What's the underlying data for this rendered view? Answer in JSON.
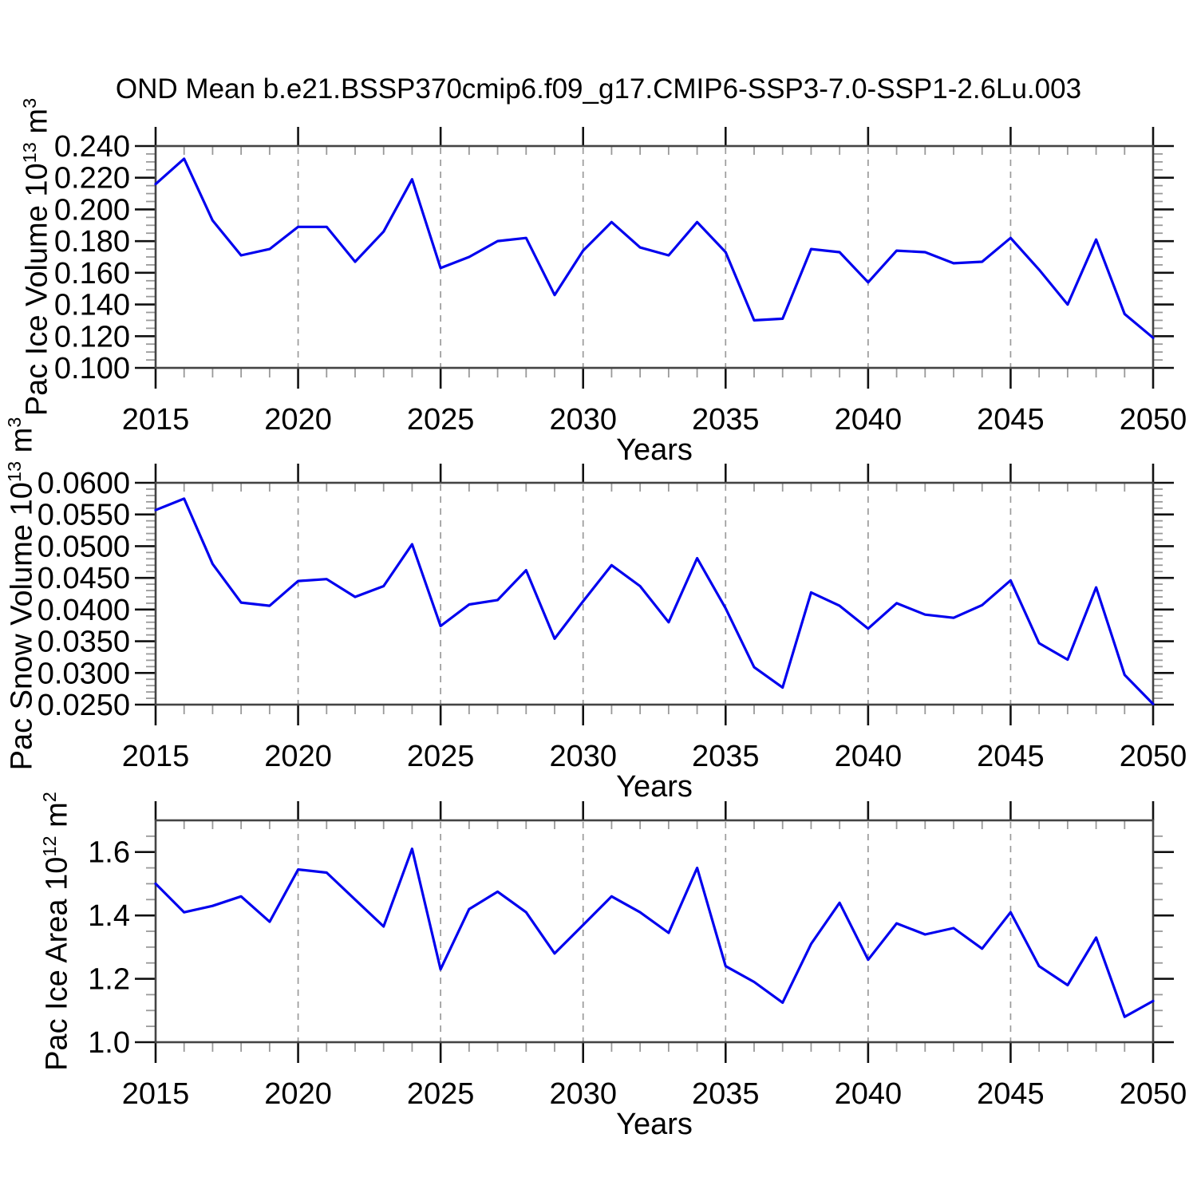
{
  "title": "OND Mean b.e21.BSSP370cmip6.f09_g17.CMIP6-SSP3-7.0-SSP1-2.6Lu.003",
  "colors": {
    "series_line": "#0000EE",
    "axis_frame": "#444444",
    "major_tick": "#111111",
    "minor_tick": "#999999",
    "gridline": "#9b9b9b",
    "text": "#000000",
    "background": "#ffffff"
  },
  "years": [
    2015,
    2016,
    2017,
    2018,
    2019,
    2020,
    2021,
    2022,
    2023,
    2024,
    2025,
    2026,
    2027,
    2028,
    2029,
    2030,
    2031,
    2032,
    2033,
    2034,
    2035,
    2036,
    2037,
    2038,
    2039,
    2040,
    2041,
    2042,
    2043,
    2044,
    2045,
    2046,
    2047,
    2048,
    2049,
    2050
  ],
  "x_axis": {
    "label": "Years",
    "ticks": [
      2015,
      2020,
      2025,
      2030,
      2035,
      2040,
      2045,
      2050
    ],
    "tick_labels": [
      "2015",
      "2020",
      "2025",
      "2030",
      "2035",
      "2040",
      "2045",
      "2050"
    ],
    "minor_step": 1,
    "grid_years": [
      2020,
      2025,
      2030,
      2035,
      2040,
      2045
    ],
    "range": [
      2015,
      2050
    ]
  },
  "chart_data": [
    {
      "type": "line",
      "ylabel": "Pac Ice Volume 10^{13} m^{3}",
      "xlabel": "Years",
      "ylim": [
        0.1,
        0.24
      ],
      "yticks": [
        0.24,
        0.22,
        0.2,
        0.18,
        0.16,
        0.14,
        0.12,
        0.1
      ],
      "ytick_labels": [
        "0.240",
        "0.220",
        "0.200",
        "0.180",
        "0.160",
        "0.140",
        "0.120",
        "0.100"
      ],
      "yminor_step": 0.005,
      "values": [
        0.216,
        0.232,
        0.193,
        0.171,
        0.175,
        0.189,
        0.189,
        0.167,
        0.186,
        0.219,
        0.163,
        0.17,
        0.18,
        0.182,
        0.146,
        0.174,
        0.192,
        0.176,
        0.171,
        0.192,
        0.173,
        0.13,
        0.131,
        0.175,
        0.173,
        0.154,
        0.174,
        0.173,
        0.166,
        0.167,
        0.182,
        0.162,
        0.14,
        0.181,
        0.134,
        0.119
      ]
    },
    {
      "type": "line",
      "ylabel": "Pac Snow Volume 10^{13} m^{3}",
      "xlabel": "Years",
      "ylim": [
        0.025,
        0.06
      ],
      "yticks": [
        0.06,
        0.055,
        0.05,
        0.045,
        0.04,
        0.035,
        0.03,
        0.025
      ],
      "ytick_labels": [
        "0.0600",
        "0.0550",
        "0.0500",
        "0.0450",
        "0.0400",
        "0.0350",
        "0.0300",
        "0.0250"
      ],
      "yminor_step": 0.001,
      "values": [
        0.0557,
        0.0575,
        0.0472,
        0.0411,
        0.0406,
        0.0445,
        0.0448,
        0.042,
        0.0437,
        0.0503,
        0.0374,
        0.0408,
        0.0415,
        0.0462,
        0.0354,
        0.0413,
        0.047,
        0.0437,
        0.038,
        0.0481,
        0.0402,
        0.0309,
        0.0277,
        0.0427,
        0.0406,
        0.037,
        0.041,
        0.0392,
        0.0387,
        0.0407,
        0.0446,
        0.0347,
        0.0321,
        0.0435,
        0.0297,
        0.0251
      ]
    },
    {
      "type": "line",
      "ylabel": "Pac Ice Area 10^{12} m^{2}",
      "xlabel": "Years",
      "ylim": [
        1.0,
        1.7
      ],
      "yticks": [
        1.6,
        1.4,
        1.2,
        1.0
      ],
      "ytick_labels": [
        "1.6",
        "1.4",
        "1.2",
        "1.0"
      ],
      "yminor_step": 0.05,
      "values": [
        1.5,
        1.41,
        1.43,
        1.46,
        1.38,
        1.545,
        1.535,
        1.45,
        1.365,
        1.61,
        1.23,
        1.42,
        1.475,
        1.41,
        1.28,
        1.37,
        1.46,
        1.41,
        1.345,
        1.55,
        1.24,
        1.19,
        1.125,
        1.31,
        1.44,
        1.26,
        1.375,
        1.34,
        1.36,
        1.295,
        1.41,
        1.24,
        1.18,
        1.33,
        1.08,
        1.13
      ]
    }
  ]
}
